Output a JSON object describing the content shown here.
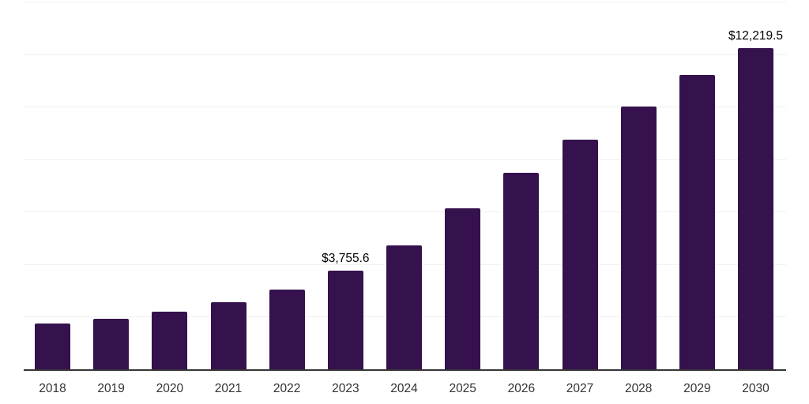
{
  "chart_data": {
    "type": "bar",
    "title": "",
    "xlabel": "",
    "ylabel": "",
    "categories": [
      "2018",
      "2019",
      "2020",
      "2021",
      "2022",
      "2023",
      "2024",
      "2025",
      "2026",
      "2027",
      "2028",
      "2029",
      "2030"
    ],
    "values": [
      1740,
      1910,
      2190,
      2560,
      3040,
      3755.6,
      4720,
      6130,
      7480,
      8750,
      9990,
      11220,
      12219.5
    ],
    "value_labels": [
      null,
      null,
      null,
      null,
      null,
      "$3,755.6",
      null,
      null,
      null,
      null,
      null,
      null,
      "$12,219.5"
    ],
    "ylim": [
      0,
      14000
    ],
    "gridline_step": 2000,
    "grid": "horizontal-only",
    "y_tick_labels": "none",
    "legend": "none",
    "colors": {
      "bar": "#35114d",
      "gridline": "#f0f0f0",
      "axis": "#363636",
      "tick_label": "#333333",
      "value_label": "#000000"
    }
  }
}
